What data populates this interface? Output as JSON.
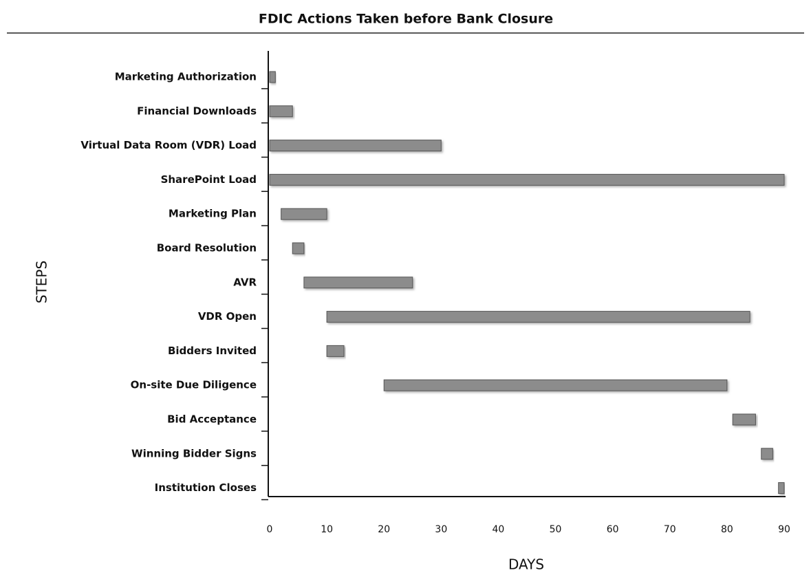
{
  "chart_data": {
    "type": "gantt",
    "title": "FDIC Actions Taken before Bank Closure",
    "ylabel": "STEPS",
    "xlabel": "DAYS",
    "categories": [
      "Marketing Authorization",
      "Financial Downloads",
      "Virtual Data Room (VDR)  Load",
      "SharePoint Load",
      "Marketing Plan",
      "Board Resolution",
      "AVR",
      "VDR Open",
      "Bidders Invited",
      "On-site Due Diligence",
      "Bid Acceptance",
      "Winning Bidder Signs",
      "Institution Closes"
    ],
    "starts": [
      0,
      0,
      0,
      0,
      2,
      4,
      6,
      10,
      10,
      20,
      81,
      86,
      89
    ],
    "ends": [
      1,
      4,
      30,
      90,
      10,
      6,
      25,
      84,
      13,
      80,
      85,
      88,
      90
    ],
    "color": "#8c8c8c",
    "xlim": [
      0,
      90
    ],
    "xticks": [
      0,
      10,
      20,
      30,
      40,
      50,
      60,
      70,
      80,
      90
    ]
  }
}
